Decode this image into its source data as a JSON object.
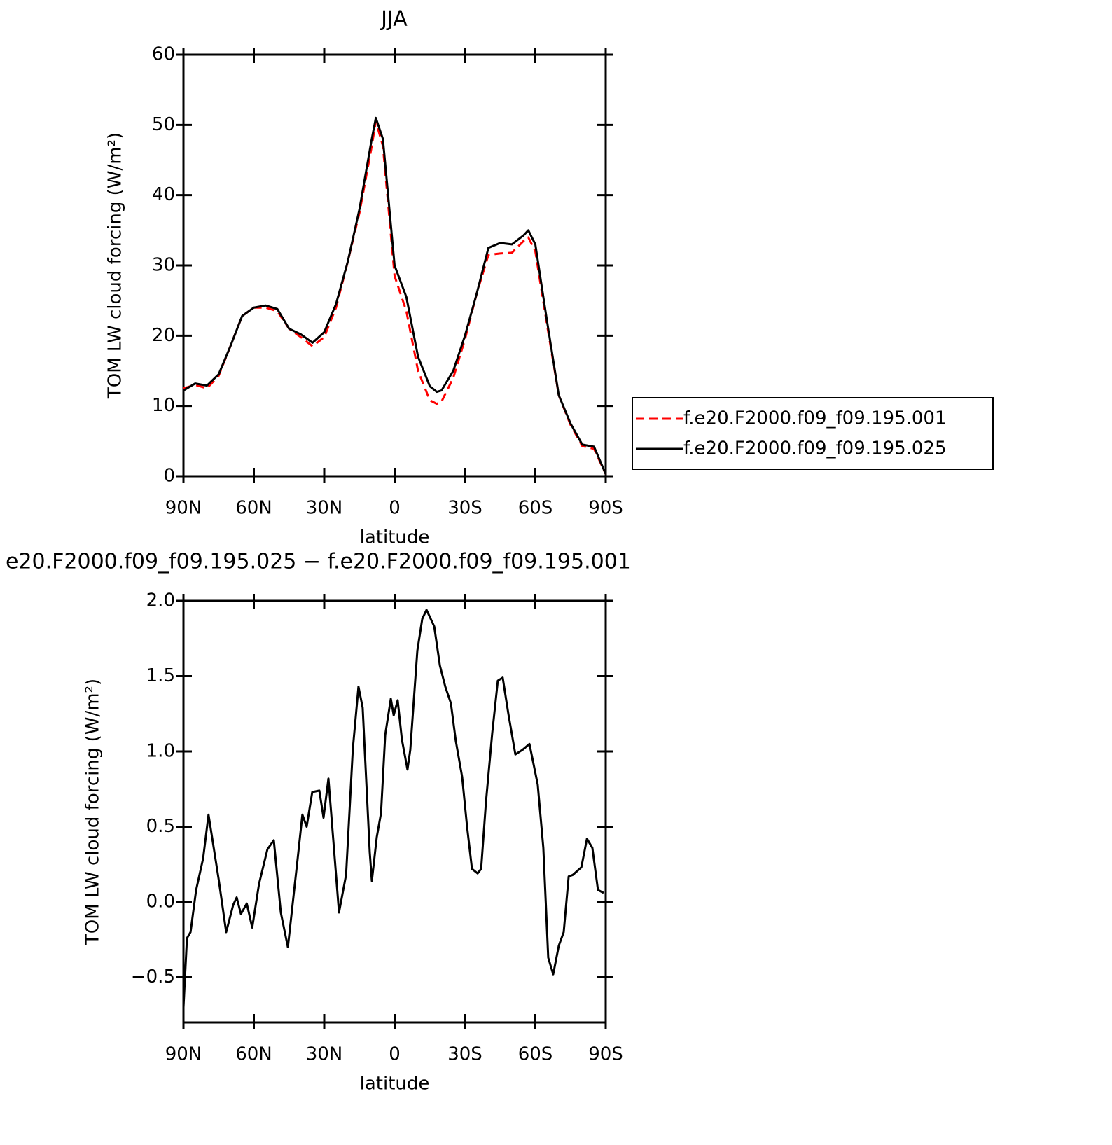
{
  "chart_data": [
    {
      "type": "line",
      "title": "JJA",
      "xlabel": "latitude",
      "ylabel": "TOM LW cloud forcing (W/m²)",
      "x": [
        90,
        85,
        80,
        75,
        70,
        65,
        60,
        55,
        50,
        45,
        40,
        35,
        30,
        25,
        20,
        15,
        10,
        8,
        5,
        0,
        -5,
        -10,
        -15,
        -18,
        -20,
        -25,
        -30,
        -35,
        -40,
        -45,
        -50,
        -55,
        -57,
        -60,
        -65,
        -70,
        -75,
        -80,
        -85,
        -90
      ],
      "series": [
        {
          "name": "f.e20.F2000.f09_f09.195.001",
          "color": "#ff0000",
          "linestyle": "dashed",
          "values": [
            12.5,
            13.0,
            12.5,
            14.3,
            18.5,
            22.8,
            24.0,
            24.0,
            23.5,
            21.0,
            19.8,
            18.5,
            19.8,
            24,
            30.5,
            37.5,
            46.5,
            50.5,
            47,
            28.5,
            23.5,
            15,
            10.8,
            10.3,
            10.6,
            14,
            19.5,
            26,
            31.5,
            31.7,
            31.8,
            33.5,
            34,
            32,
            21.5,
            11.5,
            7.3,
            4.3,
            3.9,
            0.3
          ]
        },
        {
          "name": "f.e20.F2000.f09_f09.195.025",
          "color": "#000000",
          "linestyle": "solid",
          "values": [
            12.2,
            13.2,
            12.9,
            14.5,
            18.5,
            22.8,
            24.0,
            24.3,
            23.8,
            21.0,
            20.2,
            19.0,
            20.5,
            24.5,
            30.5,
            38,
            47.5,
            51,
            48,
            30,
            25.5,
            17,
            12.8,
            12,
            12.2,
            15,
            20,
            26,
            32.5,
            33.2,
            33,
            34.3,
            35,
            33,
            22,
            11.5,
            7.5,
            4.5,
            4.2,
            0.3
          ]
        }
      ],
      "xlim": [
        90,
        -90
      ],
      "xticks": [
        {
          "value": 90,
          "label": "90N"
        },
        {
          "value": 60,
          "label": "60N"
        },
        {
          "value": 30,
          "label": "30N"
        },
        0,
        {
          "value": -30,
          "label": "30S"
        },
        {
          "value": -60,
          "label": "60S"
        },
        {
          "value": -90,
          "label": "90S"
        }
      ],
      "ylim": [
        0,
        60
      ],
      "yticks": [
        0,
        10,
        20,
        30,
        40,
        50,
        60
      ],
      "legend": "right"
    },
    {
      "type": "line",
      "title": "e20.F2000.f09_f09.195.025 − f.e20.F2000.f09_f09.195.001",
      "xlabel": "latitude",
      "ylabel": "TOM LW cloud forcing (W/m²)",
      "x": [
        90,
        88.5,
        87,
        84.6,
        81.6,
        79.3,
        75,
        71.8,
        68.8,
        67.3,
        65.5,
        63,
        60.7,
        57.8,
        54.2,
        51.5,
        48.5,
        45.5,
        41.3,
        39.3,
        37.5,
        35.1,
        32.1,
        30.3,
        28.2,
        23.7,
        20.7,
        17.8,
        15.4,
        13.6,
        10.6,
        9.7,
        7.6,
        5.8,
        4.0,
        1.6,
        0.4,
        -1.3,
        -3.1,
        -5.5,
        -6.7,
        -9.7,
        -11.8,
        -13.6,
        -16.9,
        -19.3,
        -21.6,
        -24,
        -26.1,
        -28.8,
        -30.9,
        -33,
        -35.4,
        -36.9,
        -39,
        -41.6,
        -44,
        -46.1,
        -48.5,
        -51.5,
        -54.5,
        -57.5,
        -61,
        -63.4,
        -65.5,
        -67.6,
        -70,
        -72.1,
        -74.2,
        -76,
        -79.6,
        -82,
        -84.3,
        -86.7,
        -89.1
      ],
      "values": [
        -0.7,
        -0.24,
        -0.2,
        0.08,
        0.29,
        0.58,
        0.15,
        -0.2,
        -0.02,
        0.03,
        -0.08,
        -0.01,
        -0.17,
        0.12,
        0.35,
        0.41,
        -0.07,
        -0.3,
        0.29,
        0.58,
        0.5,
        0.73,
        0.74,
        0.56,
        0.82,
        -0.07,
        0.18,
        1.02,
        1.43,
        1.29,
        0.33,
        0.14,
        0.43,
        0.59,
        1.11,
        1.35,
        1.24,
        1.34,
        1.08,
        0.88,
        1.01,
        1.67,
        1.88,
        1.94,
        1.83,
        1.57,
        1.43,
        1.32,
        1.07,
        0.83,
        0.5,
        0.22,
        0.19,
        0.22,
        0.67,
        1.12,
        1.47,
        1.49,
        1.25,
        0.98,
        1.01,
        1.05,
        0.78,
        0.36,
        -0.37,
        -0.48,
        -0.29,
        -0.2,
        0.17,
        0.18,
        0.23,
        0.42,
        0.36,
        0.08,
        0.06
      ],
      "color": "#000000",
      "linestyle": "solid",
      "xlim": [
        90,
        -90
      ],
      "xticks": [
        {
          "value": 90,
          "label": "90N"
        },
        {
          "value": 60,
          "label": "60N"
        },
        {
          "value": 30,
          "label": "30N"
        },
        0,
        {
          "value": -30,
          "label": "30S"
        },
        {
          "value": -60,
          "label": "60S"
        },
        {
          "value": -90,
          "label": "90S"
        }
      ],
      "ylim": [
        -0.8,
        2.0
      ],
      "yticks": [
        {
          "value": -0.5,
          "label": "−0.5"
        },
        {
          "value": 0,
          "label": "0.0"
        },
        0.5,
        {
          "value": 1,
          "label": "1.0"
        },
        1.5,
        {
          "value": 2,
          "label": "2.0"
        }
      ]
    }
  ]
}
